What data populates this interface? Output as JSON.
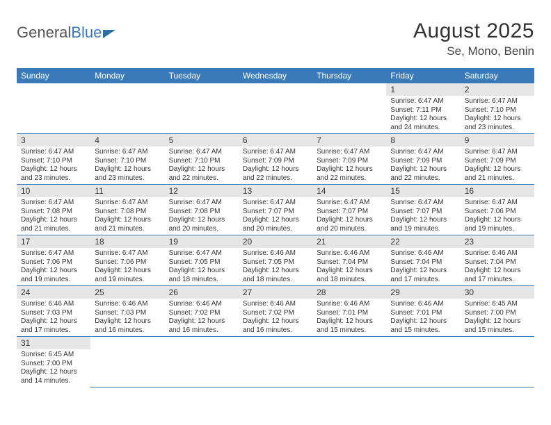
{
  "logo": {
    "part1": "General",
    "part2": "Blue"
  },
  "title": "August 2025",
  "location": "Se, Mono, Benin",
  "colors": {
    "header_bg": "#3a7ab8",
    "header_fg": "#ffffff",
    "daynum_bg": "#e6e6e6",
    "text": "#333333",
    "divider": "#3a7ab8",
    "background": "#ffffff"
  },
  "dayHeaders": [
    "Sunday",
    "Monday",
    "Tuesday",
    "Wednesday",
    "Thursday",
    "Friday",
    "Saturday"
  ],
  "startOffset": 5,
  "days": [
    {
      "n": 1,
      "sunrise": "6:47 AM",
      "sunset": "7:11 PM",
      "daylight": "12 hours and 24 minutes."
    },
    {
      "n": 2,
      "sunrise": "6:47 AM",
      "sunset": "7:10 PM",
      "daylight": "12 hours and 23 minutes."
    },
    {
      "n": 3,
      "sunrise": "6:47 AM",
      "sunset": "7:10 PM",
      "daylight": "12 hours and 23 minutes."
    },
    {
      "n": 4,
      "sunrise": "6:47 AM",
      "sunset": "7:10 PM",
      "daylight": "12 hours and 23 minutes."
    },
    {
      "n": 5,
      "sunrise": "6:47 AM",
      "sunset": "7:10 PM",
      "daylight": "12 hours and 22 minutes."
    },
    {
      "n": 6,
      "sunrise": "6:47 AM",
      "sunset": "7:09 PM",
      "daylight": "12 hours and 22 minutes."
    },
    {
      "n": 7,
      "sunrise": "6:47 AM",
      "sunset": "7:09 PM",
      "daylight": "12 hours and 22 minutes."
    },
    {
      "n": 8,
      "sunrise": "6:47 AM",
      "sunset": "7:09 PM",
      "daylight": "12 hours and 22 minutes."
    },
    {
      "n": 9,
      "sunrise": "6:47 AM",
      "sunset": "7:09 PM",
      "daylight": "12 hours and 21 minutes."
    },
    {
      "n": 10,
      "sunrise": "6:47 AM",
      "sunset": "7:08 PM",
      "daylight": "12 hours and 21 minutes."
    },
    {
      "n": 11,
      "sunrise": "6:47 AM",
      "sunset": "7:08 PM",
      "daylight": "12 hours and 21 minutes."
    },
    {
      "n": 12,
      "sunrise": "6:47 AM",
      "sunset": "7:08 PM",
      "daylight": "12 hours and 20 minutes."
    },
    {
      "n": 13,
      "sunrise": "6:47 AM",
      "sunset": "7:07 PM",
      "daylight": "12 hours and 20 minutes."
    },
    {
      "n": 14,
      "sunrise": "6:47 AM",
      "sunset": "7:07 PM",
      "daylight": "12 hours and 20 minutes."
    },
    {
      "n": 15,
      "sunrise": "6:47 AM",
      "sunset": "7:07 PM",
      "daylight": "12 hours and 19 minutes."
    },
    {
      "n": 16,
      "sunrise": "6:47 AM",
      "sunset": "7:06 PM",
      "daylight": "12 hours and 19 minutes."
    },
    {
      "n": 17,
      "sunrise": "6:47 AM",
      "sunset": "7:06 PM",
      "daylight": "12 hours and 19 minutes."
    },
    {
      "n": 18,
      "sunrise": "6:47 AM",
      "sunset": "7:06 PM",
      "daylight": "12 hours and 19 minutes."
    },
    {
      "n": 19,
      "sunrise": "6:47 AM",
      "sunset": "7:05 PM",
      "daylight": "12 hours and 18 minutes."
    },
    {
      "n": 20,
      "sunrise": "6:46 AM",
      "sunset": "7:05 PM",
      "daylight": "12 hours and 18 minutes."
    },
    {
      "n": 21,
      "sunrise": "6:46 AM",
      "sunset": "7:04 PM",
      "daylight": "12 hours and 18 minutes."
    },
    {
      "n": 22,
      "sunrise": "6:46 AM",
      "sunset": "7:04 PM",
      "daylight": "12 hours and 17 minutes."
    },
    {
      "n": 23,
      "sunrise": "6:46 AM",
      "sunset": "7:04 PM",
      "daylight": "12 hours and 17 minutes."
    },
    {
      "n": 24,
      "sunrise": "6:46 AM",
      "sunset": "7:03 PM",
      "daylight": "12 hours and 17 minutes."
    },
    {
      "n": 25,
      "sunrise": "6:46 AM",
      "sunset": "7:03 PM",
      "daylight": "12 hours and 16 minutes."
    },
    {
      "n": 26,
      "sunrise": "6:46 AM",
      "sunset": "7:02 PM",
      "daylight": "12 hours and 16 minutes."
    },
    {
      "n": 27,
      "sunrise": "6:46 AM",
      "sunset": "7:02 PM",
      "daylight": "12 hours and 16 minutes."
    },
    {
      "n": 28,
      "sunrise": "6:46 AM",
      "sunset": "7:01 PM",
      "daylight": "12 hours and 15 minutes."
    },
    {
      "n": 29,
      "sunrise": "6:46 AM",
      "sunset": "7:01 PM",
      "daylight": "12 hours and 15 minutes."
    },
    {
      "n": 30,
      "sunrise": "6:45 AM",
      "sunset": "7:00 PM",
      "daylight": "12 hours and 15 minutes."
    },
    {
      "n": 31,
      "sunrise": "6:45 AM",
      "sunset": "7:00 PM",
      "daylight": "12 hours and 14 minutes."
    }
  ],
  "labels": {
    "sunrise": "Sunrise:",
    "sunset": "Sunset:",
    "daylight": "Daylight:"
  }
}
